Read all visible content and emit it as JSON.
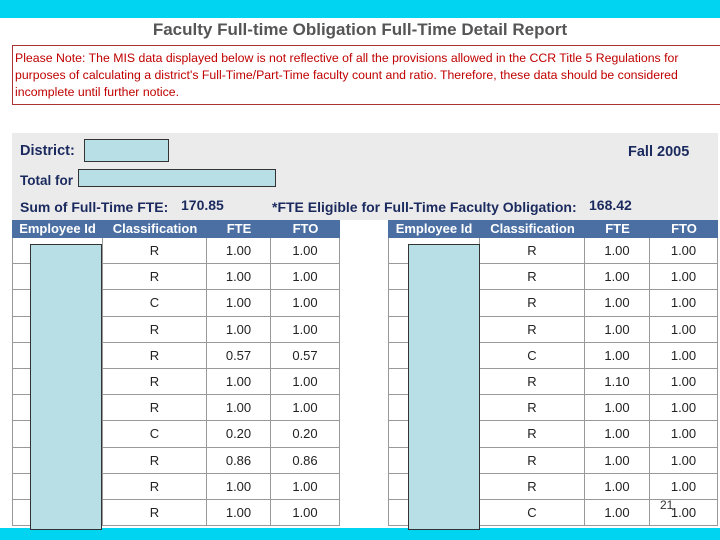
{
  "title": "Faculty Full-time Obligation Full-Time Detail Report",
  "note": {
    "lines": [
      "Please Note: The MIS data displayed below is not reflective of all the provisions allowed in the CCR Title 5 Regulations for",
      "purposes of calculating a district's Full-Time/Part-Time faculty count and ratio. Therefore, these data should be considered",
      "incomplete until further notice."
    ]
  },
  "summary": {
    "district_label": "District:",
    "term": "Fall 2005",
    "total_label": "Total for",
    "fte_label": "Sum of Full-Time FTE:",
    "fte_value": "170.85",
    "eligible_label": "*FTE Eligible for Full-Time Faculty Obligation:",
    "eligible_value": "168.42"
  },
  "left_table": {
    "headers": [
      "Employee Id",
      "Classification",
      "FTE",
      "FTO"
    ],
    "rows": [
      [
        "R",
        "1.00",
        "1.00"
      ],
      [
        "R",
        "1.00",
        "1.00"
      ],
      [
        "C",
        "1.00",
        "1.00"
      ],
      [
        "R",
        "1.00",
        "1.00"
      ],
      [
        "R",
        "0.57",
        "0.57"
      ],
      [
        "R",
        "1.00",
        "1.00"
      ],
      [
        "R",
        "1.00",
        "1.00"
      ],
      [
        "C",
        "0.20",
        "0.20"
      ],
      [
        "R",
        "0.86",
        "0.86"
      ],
      [
        "R",
        "1.00",
        "1.00"
      ],
      [
        "R",
        "1.00",
        "1.00"
      ]
    ]
  },
  "right_table": {
    "headers": [
      "Employee Id",
      "Classification",
      "FTE",
      "FTO"
    ],
    "rows": [
      [
        "R",
        "1.00",
        "1.00"
      ],
      [
        "R",
        "1.00",
        "1.00"
      ],
      [
        "R",
        "1.00",
        "1.00"
      ],
      [
        "R",
        "1.00",
        "1.00"
      ],
      [
        "C",
        "1.00",
        "1.00"
      ],
      [
        "R",
        "1.10",
        "1.00"
      ],
      [
        "R",
        "1.00",
        "1.00"
      ],
      [
        "R",
        "1.00",
        "1.00"
      ],
      [
        "R",
        "1.00",
        "1.00"
      ],
      [
        "R",
        "1.00",
        "1.00"
      ],
      [
        "C",
        "1.00",
        "1.00"
      ]
    ]
  },
  "page_number": "21"
}
